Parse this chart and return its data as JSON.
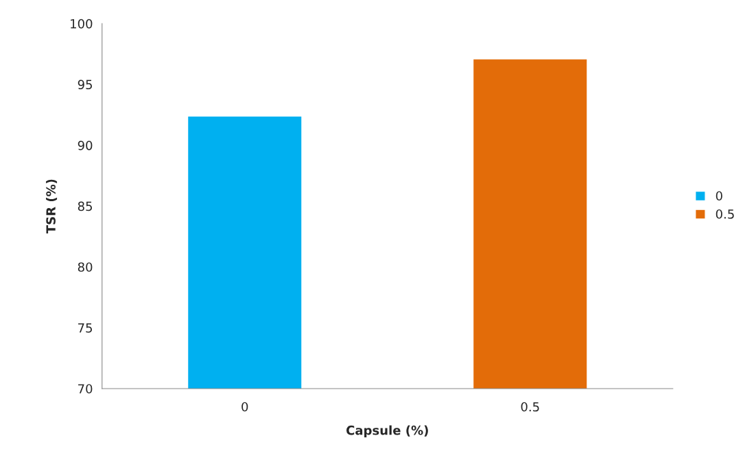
{
  "chart_data": {
    "type": "bar",
    "xlabel": "Capsule (%)",
    "ylabel": "TSR (%)",
    "categories": [
      "0",
      "0.5"
    ],
    "series": [
      {
        "name": "0",
        "color": "#00b0f0",
        "values": [
          92.4,
          null
        ]
      },
      {
        "name": "0.5",
        "color": "#e36c09",
        "values": [
          null,
          97.1
        ]
      }
    ],
    "ylim": [
      70,
      100
    ],
    "yticks": [
      70,
      75,
      80,
      85,
      90,
      95,
      100
    ],
    "grid": false,
    "legend": "right"
  }
}
